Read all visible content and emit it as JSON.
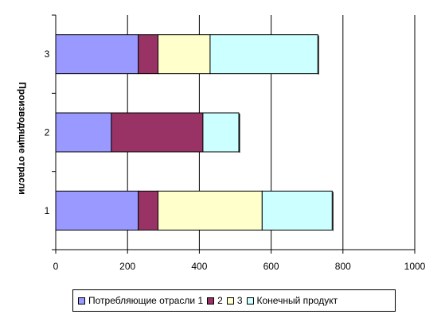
{
  "chart_data": {
    "type": "bar",
    "orientation": "horizontal",
    "stacked": true,
    "ylabel": "Производящие отрасли",
    "categories": [
      "1",
      "2",
      "3"
    ],
    "series": [
      {
        "name": "Потребляющие отрасли 1",
        "color": "#9999ff",
        "values": [
          230,
          155,
          230
        ]
      },
      {
        "name": "2",
        "color": "#993366",
        "values": [
          55,
          255,
          55
        ]
      },
      {
        "name": "3",
        "color": "#ffffcc",
        "values": [
          290,
          0,
          145
        ]
      },
      {
        "name": "Конечный продукт",
        "color": "#ccffff",
        "values": [
          195,
          100,
          300
        ]
      }
    ],
    "xlim": [
      0,
      1000
    ],
    "xticks": [
      0,
      200,
      400,
      600,
      800,
      1000
    ],
    "grid": "vertical-major",
    "legend_position": "bottom"
  }
}
